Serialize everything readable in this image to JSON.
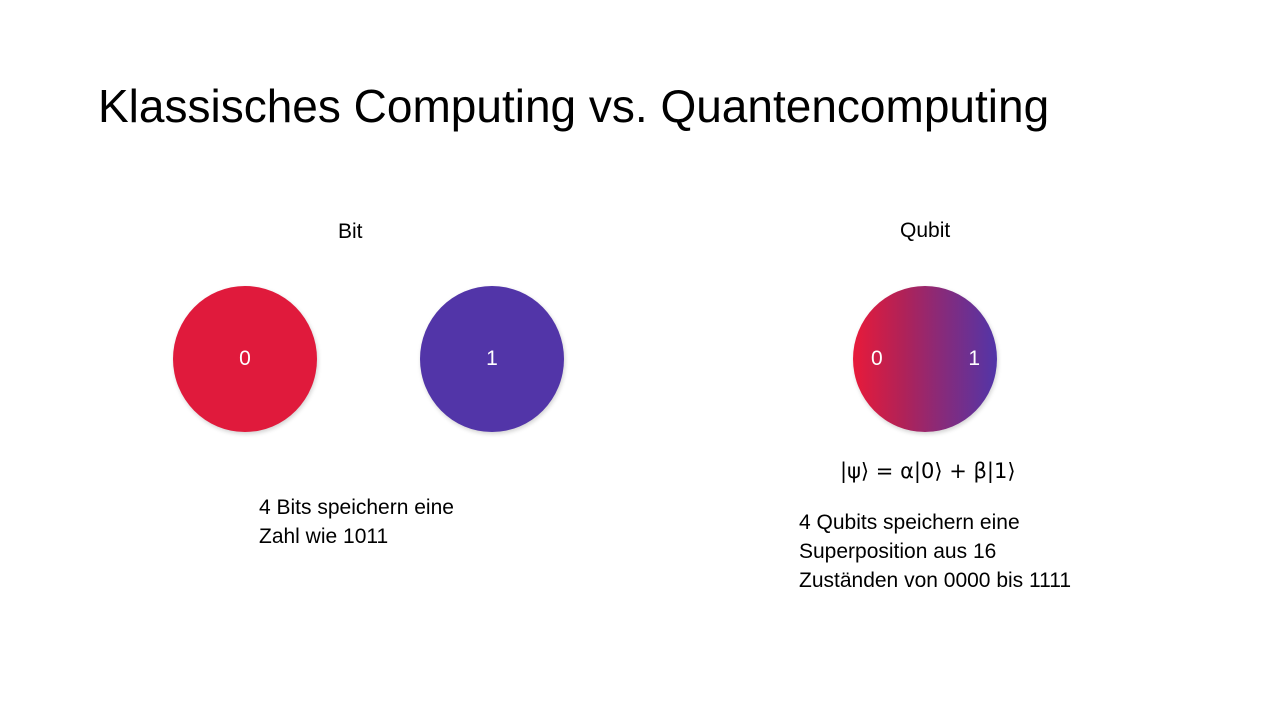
{
  "slide": {
    "title": "Klassisches Computing vs. Quantencomputing"
  },
  "bit_section": {
    "label": "Bit",
    "states": [
      "0",
      "1"
    ],
    "colors": {
      "zero": "#e01a3c",
      "one": "#5235a8"
    },
    "description": [
      "4 Bits speichern eine",
      "Zahl wie 1011"
    ]
  },
  "qubit_section": {
    "label": "Qubit",
    "states": [
      "0",
      "1"
    ],
    "gradient_colors": [
      "#e81a3a",
      "#5235a8"
    ],
    "formula": "|ψ⟩ = α|0⟩ + β|1⟩",
    "description": [
      "4 Qubits speichern eine",
      "Superposition aus 16",
      "Zuständen von 0000 bis 1111"
    ]
  }
}
